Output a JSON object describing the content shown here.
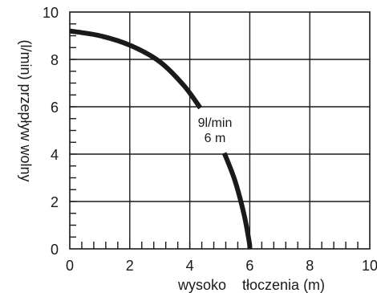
{
  "chart_data": {
    "type": "line",
    "title": "",
    "xlabel": "wysoko    tłoczenia (m)",
    "ylabel": "(l/min) przepływ wolny",
    "xlim": [
      0,
      10
    ],
    "ylim": [
      0,
      10
    ],
    "x_ticks": [
      "0",
      "2",
      "4",
      "6",
      "8",
      "10"
    ],
    "y_ticks": [
      "0",
      "2",
      "4",
      "6",
      "8",
      "10"
    ],
    "x_minor_step": 0.4,
    "grid": true,
    "series": [
      {
        "segments": [
          [
            [
              0,
              9.2
            ],
            [
              1,
              9.0
            ],
            [
              2,
              8.6
            ],
            [
              3,
              7.9
            ],
            [
              3.8,
              6.9
            ],
            [
              4.35,
              5.95
            ]
          ],
          [
            [
              5.15,
              4.05
            ],
            [
              5.5,
              2.9
            ],
            [
              5.8,
              1.5
            ],
            [
              5.98,
              0.3
            ],
            [
              6.0,
              0
            ]
          ]
        ]
      }
    ],
    "annotation": {
      "lines": [
        "9l/min",
        "6 m"
      ]
    }
  },
  "colors": {
    "axis": "#1a1a1a",
    "grid": "#1a1a1a",
    "curve": "#1a1a1a"
  }
}
